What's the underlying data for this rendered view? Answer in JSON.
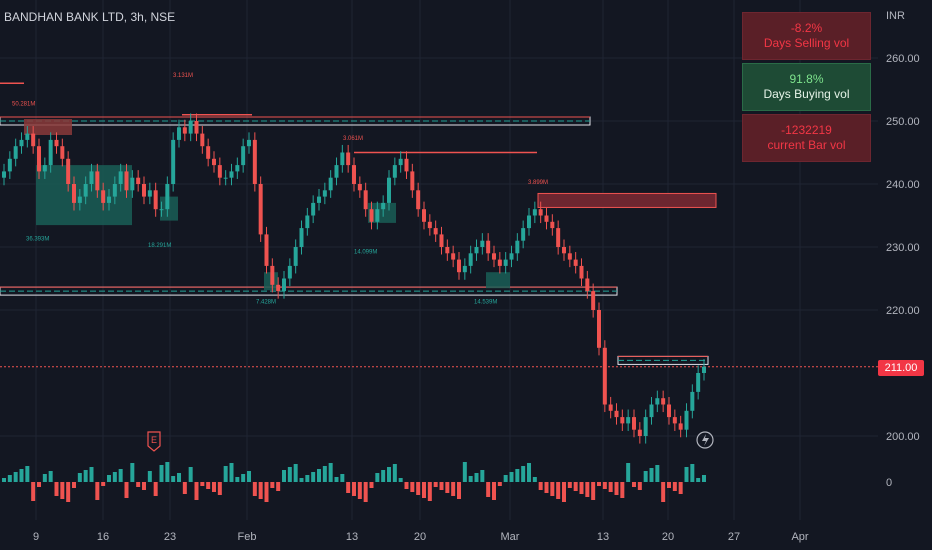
{
  "header": {
    "title": "BANDHAN BANK LTD, 3h, NSE",
    "currency": "INR"
  },
  "panels": [
    {
      "value": "-8.2%",
      "label": "Days Selling vol",
      "tone": "red"
    },
    {
      "value": "91.8%",
      "label": "Days Buying vol",
      "tone": "green"
    },
    {
      "value": "-1232219",
      "label": "current Bar vol",
      "tone": "red"
    }
  ],
  "last_price_label": "211.00",
  "earnings_marker": "E",
  "colors": {
    "up": "#26a69a",
    "down": "#ef5350",
    "bg": "#131722",
    "grid": "#1f2433",
    "axis_text": "#b2b5be"
  },
  "chart_data": {
    "type": "candlestick",
    "y_ticks": [
      "260.00",
      "250.00",
      "240.00",
      "230.00",
      "220.00",
      "200.00"
    ],
    "ylim": [
      195,
      266
    ],
    "volume_zero_label": "0",
    "x_ticks": [
      "9",
      "16",
      "23",
      "Feb",
      "13",
      "20",
      "Mar",
      "13",
      "20",
      "27",
      "Apr"
    ],
    "volume_annotations": [
      "50.281M",
      "3.131M",
      "3.061M",
      "3.899M",
      "36.393M",
      "18.291M",
      "14.099M",
      "7.428M",
      "14.539M"
    ],
    "candles_close": [
      242,
      244,
      246,
      247,
      248,
      246,
      242,
      243,
      247,
      246,
      244,
      240,
      237,
      238,
      240,
      242,
      239,
      237,
      238,
      240,
      242,
      239,
      241,
      240,
      238,
      239,
      236,
      236,
      240,
      247,
      249,
      248,
      250,
      248,
      246,
      244,
      243,
      241,
      241,
      242,
      243,
      246,
      247,
      240,
      232,
      227,
      224,
      223,
      225,
      227,
      230,
      233,
      235,
      237,
      238,
      239,
      241,
      243,
      245,
      243,
      240,
      239,
      236,
      234,
      236,
      237,
      241,
      243,
      244,
      242,
      239,
      236,
      234,
      233,
      232,
      230,
      229,
      228,
      226,
      227,
      229,
      230,
      231,
      229,
      228,
      227,
      228,
      229,
      231,
      233,
      235,
      236,
      235,
      234,
      233,
      230,
      229,
      228,
      227,
      225,
      223,
      220,
      214,
      205,
      204,
      203,
      202,
      203,
      201,
      200,
      203,
      205,
      206,
      205,
      203,
      202,
      201,
      204,
      207,
      210,
      211
    ]
  }
}
